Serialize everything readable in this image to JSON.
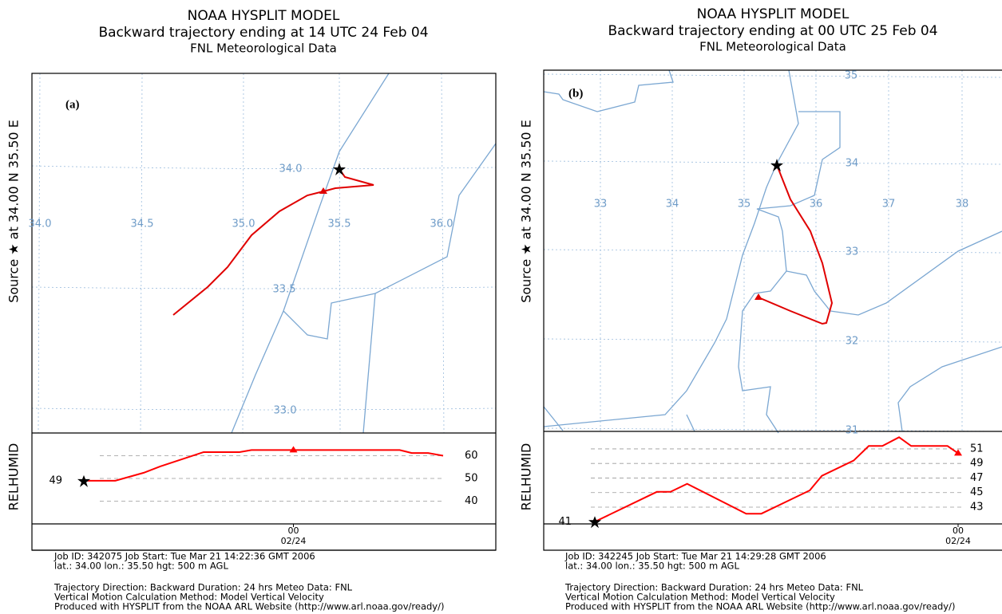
{
  "panels": [
    {
      "title": [
        "NOAA HYSPLIT MODEL",
        "Backward trajectory ending at 14 UTC 24 Feb 04",
        "FNL  Meteorological Data"
      ],
      "side_label": "Source ★ at  34.00 N   35.50 E",
      "panel_label": "(a)",
      "lon_labels": [
        "34.0",
        "34.5",
        "35.0",
        "35.5",
        "36.0"
      ],
      "lat_labels": [
        "34.0",
        "33.5",
        "33.0"
      ],
      "profile": {
        "type": "line",
        "ylabel": "RELHUMID",
        "color": "#ff0000",
        "x": [
          0,
          2.1,
          4,
          5.1,
          8,
          10.4,
          11.2,
          21.1,
          21.9,
          23,
          24
        ],
        "values": [
          49,
          49,
          52.5,
          55.3,
          61.6,
          61.6,
          62.5,
          62.5,
          61.2,
          61.2,
          60
        ],
        "xlim": [
          0,
          24
        ],
        "ylim": [
          30,
          70
        ],
        "yticks": [
          40,
          50,
          60
        ],
        "xticks": [
          {
            "value": 14,
            "label": "00",
            "sublabel": "02/24"
          }
        ],
        "markers_x": [
          14
        ]
      },
      "footer": [
        "Job ID: 342075     Job Start: Tue Mar 21 14:22:36 GMT 2006",
        "lat.: 34.00   lon.: 35.50      hgt: 500 m AGL",
        "Trajectory Direction: Backward    Duration: 24 hrs    Meteo Data: FNL",
        "Vertical Motion Calculation Method: Model Vertical Velocity",
        "Produced with HYSPLIT from the NOAA ARL Website (http://www.arl.noaa.gov/ready/)"
      ]
    },
    {
      "title": [
        "NOAA HYSPLIT MODEL",
        "Backward trajectory ending at 00 UTC 25 Feb 04",
        "FNL  Meteorological Data"
      ],
      "side_label": "Source ★ at  34.00 N   35.50 E",
      "panel_label": "(b)",
      "lon_labels": [
        "33",
        "34",
        "35",
        "36",
        "37",
        "38"
      ],
      "lat_labels": [
        "35",
        "34",
        "33",
        "32",
        "31"
      ],
      "profile": {
        "type": "line",
        "ylabel": "RELHUMID",
        "color": "#ff0000",
        "x": [
          0,
          4.1,
          5,
          6.1,
          10,
          11,
          14.2,
          15,
          17.1,
          18.1,
          19,
          20.1,
          20.9,
          23.3,
          24
        ],
        "values": [
          41,
          45.1,
          45.1,
          46.2,
          42.1,
          42.1,
          45.3,
          47.3,
          49.4,
          51.4,
          51.4,
          52.6,
          51.4,
          51.4,
          50.4
        ],
        "xlim": [
          0,
          24
        ],
        "ylim": [
          40.7,
          53.4
        ],
        "yticks": [
          43,
          45,
          47,
          49,
          51
        ],
        "xticks": [
          {
            "value": 24,
            "label": "00",
            "sublabel": "02/24"
          }
        ],
        "markers_x": [
          24
        ]
      },
      "footer": [
        "Job ID: 342245     Job Start: Tue Mar 21 14:29:28 GMT 2006",
        "lat.: 34.00   lon.: 35.50      hgt: 500 m AGL",
        "Trajectory Direction: Backward    Duration: 24 hrs    Meteo Data: FNL",
        "Vertical Motion Calculation Method: Model Vertical Velocity",
        "Produced with HYSPLIT from the NOAA ARL Website (http://www.arl.noaa.gov/ready/)"
      ]
    }
  ]
}
